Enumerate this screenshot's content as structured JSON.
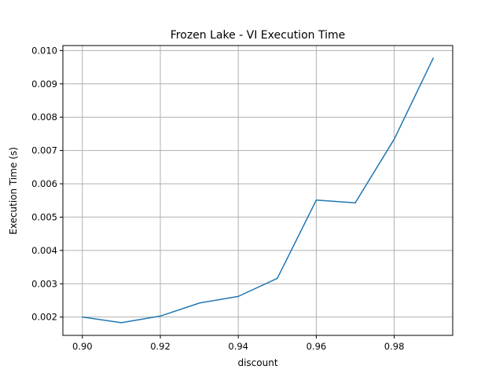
{
  "chart_data": {
    "type": "line",
    "title": "Frozen Lake - VI Execution Time",
    "xlabel": "discount",
    "ylabel": "Execution Time (s)",
    "xlim": [
      0.895,
      0.995
    ],
    "ylim": [
      0.00145,
      0.01015
    ],
    "x_ticks": [
      0.9,
      0.92,
      0.94,
      0.96,
      0.98
    ],
    "x_tick_labels": [
      "0.90",
      "0.92",
      "0.94",
      "0.96",
      "0.98"
    ],
    "y_ticks": [
      0.002,
      0.003,
      0.004,
      0.005,
      0.006,
      0.007,
      0.008,
      0.009,
      0.01
    ],
    "y_tick_labels": [
      "0.002",
      "0.003",
      "0.004",
      "0.005",
      "0.006",
      "0.007",
      "0.008",
      "0.009",
      "0.010"
    ],
    "grid": true,
    "series": [
      {
        "color": "#1f77b4",
        "x": [
          0.9,
          0.91,
          0.92,
          0.93,
          0.94,
          0.95,
          0.96,
          0.97,
          0.98,
          0.99
        ],
        "y": [
          0.002,
          0.00183,
          0.00203,
          0.00242,
          0.00262,
          0.00316,
          0.00551,
          0.00543,
          0.00734,
          0.00977
        ]
      }
    ]
  }
}
